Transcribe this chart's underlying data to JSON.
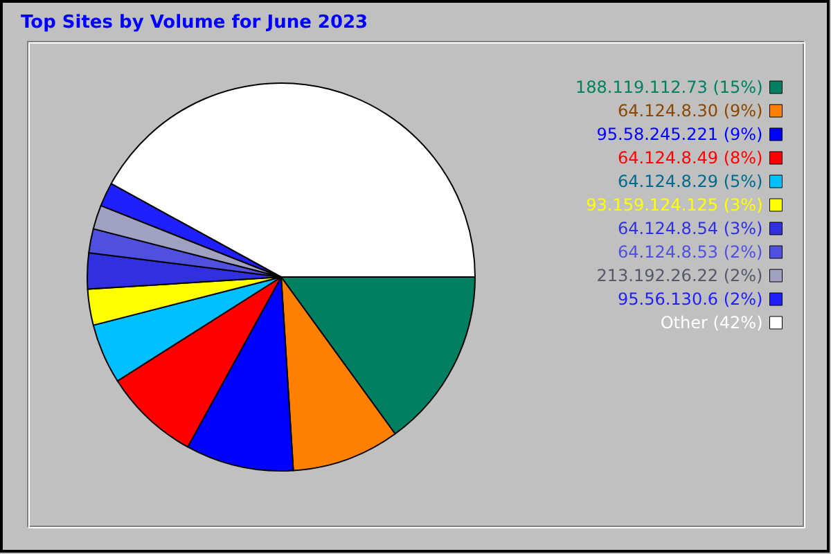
{
  "chart_data": {
    "type": "pie",
    "title": "Top Sites by Volume for June 2023",
    "legend": "right",
    "categories": [
      "188.119.112.73 (15%)",
      "64.124.8.30 (9%)",
      "95.58.245.221 (9%)",
      "64.124.8.49 (8%)",
      "64.124.8.29 (5%)",
      "93.159.124.125 (3%)",
      "64.124.8.54 (3%)",
      "64.124.8.53 (2%)",
      "213.192.26.22 (2%)",
      "95.56.130.6 (2%)",
      "Other (42%)"
    ],
    "values": [
      15,
      9,
      9,
      8,
      5,
      3,
      3,
      2,
      2,
      2,
      42
    ],
    "colors": [
      "#008060",
      "#ff8000",
      "#0000ff",
      "#ff0000",
      "#00c0ff",
      "#ffff00",
      "#3030e0",
      "#5050e0",
      "#a0a0c0",
      "#2020ff",
      "#ffffff"
    ]
  }
}
